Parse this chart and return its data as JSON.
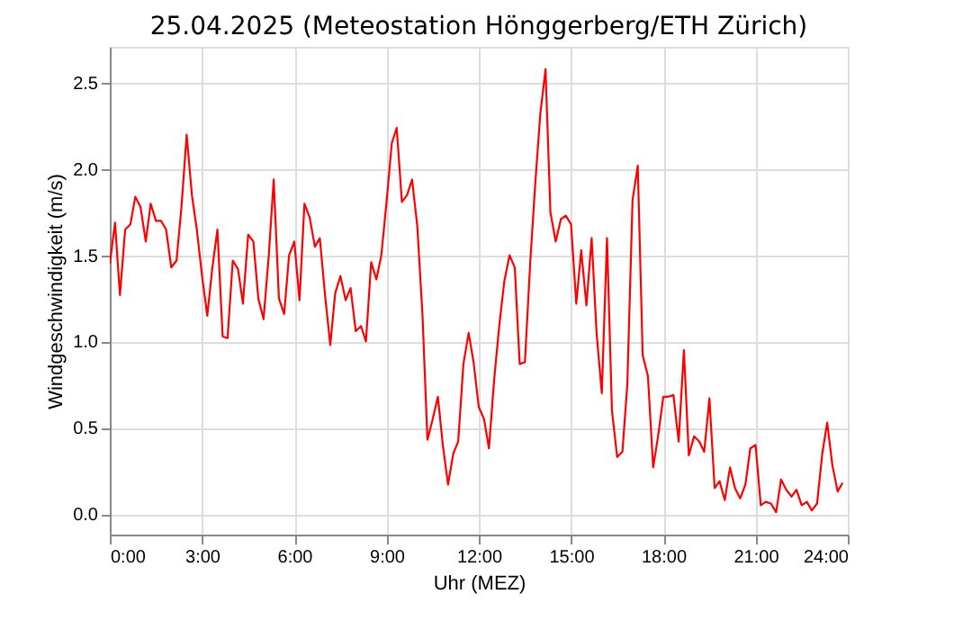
{
  "chart_data": {
    "type": "line",
    "title": "25.04.2025  (Meteostation Hönggerberg/ETH Zürich)",
    "xlabel": "Uhr (MEZ)",
    "ylabel": "Windgeschwindigkeit (m/s)",
    "x": [
      0,
      0.17,
      0.33,
      0.5,
      0.67,
      0.83,
      1.0,
      1.17,
      1.33,
      1.5,
      1.67,
      1.83,
      2.0,
      2.17,
      2.33,
      2.5,
      2.67,
      2.83,
      3.0,
      3.17,
      3.33,
      3.5,
      3.67,
      3.83,
      4.0,
      4.17,
      4.33,
      4.5,
      4.67,
      4.83,
      5.0,
      5.17,
      5.33,
      5.5,
      5.67,
      5.83,
      6.0,
      6.17,
      6.33,
      6.5,
      6.67,
      6.83,
      7.0,
      7.17,
      7.33,
      7.5,
      7.67,
      7.83,
      8.0,
      8.17,
      8.33,
      8.5,
      8.67,
      8.83,
      9.0,
      9.17,
      9.33,
      9.5,
      9.67,
      9.83,
      10.0,
      10.17,
      10.33,
      10.5,
      10.67,
      10.83,
      11.0,
      11.17,
      11.33,
      11.5,
      11.67,
      11.83,
      12.0,
      12.17,
      12.33,
      12.5,
      12.67,
      12.83,
      13.0,
      13.17,
      13.33,
      13.5,
      13.67,
      13.83,
      14.0,
      14.17,
      14.33,
      14.5,
      14.67,
      14.83,
      15.0,
      15.17,
      15.33,
      15.5,
      15.67,
      15.83,
      16.0,
      16.17,
      16.33,
      16.5,
      16.67,
      16.83,
      17.0,
      17.17,
      17.33,
      17.5,
      17.67,
      17.83,
      18.0,
      18.17,
      18.33,
      18.5,
      18.67,
      18.83,
      19.0,
      19.17,
      19.33,
      19.5,
      19.67,
      19.83,
      20.0,
      20.17,
      20.33,
      20.5,
      20.67,
      20.83,
      21.0,
      21.17,
      21.33,
      21.5,
      21.67,
      21.83,
      22.0,
      22.17,
      22.33,
      22.5,
      22.67,
      22.83,
      23.0,
      23.17,
      23.33,
      23.5,
      23.67,
      23.83
    ],
    "series": [
      {
        "color": "#ff0000",
        "values": [
          1.45,
          1.69,
          1.27,
          1.65,
          1.68,
          1.84,
          1.78,
          1.58,
          1.8,
          1.7,
          1.7,
          1.65,
          1.43,
          1.47,
          1.78,
          2.2,
          1.85,
          1.65,
          1.38,
          1.15,
          1.42,
          1.65,
          1.03,
          1.02,
          1.47,
          1.42,
          1.22,
          1.62,
          1.58,
          1.25,
          1.13,
          1.5,
          1.94,
          1.25,
          1.16,
          1.5,
          1.58,
          1.24,
          1.8,
          1.72,
          1.55,
          1.6,
          1.27,
          0.98,
          1.28,
          1.38,
          1.24,
          1.31,
          1.06,
          1.09,
          1.0,
          1.46,
          1.36,
          1.5,
          1.81,
          2.15,
          2.24,
          1.81,
          1.85,
          1.94,
          1.67,
          1.15,
          0.43,
          0.55,
          0.68,
          0.4,
          0.17,
          0.35,
          0.42,
          0.87,
          1.05,
          0.88,
          0.62,
          0.55,
          0.38,
          0.78,
          1.1,
          1.35,
          1.5,
          1.43,
          0.87,
          0.88,
          1.45,
          1.9,
          2.32,
          2.58,
          1.75,
          1.58,
          1.71,
          1.73,
          1.68,
          1.22,
          1.53,
          1.21,
          1.6,
          1.05,
          0.7,
          1.6,
          0.6,
          0.33,
          0.36,
          0.75,
          1.82,
          2.02,
          0.92,
          0.8,
          0.27,
          0.45,
          0.68,
          0.68,
          0.69,
          0.42,
          0.95,
          0.34,
          0.45,
          0.42,
          0.36,
          0.67,
          0.15,
          0.19,
          0.08,
          0.27,
          0.15,
          0.09,
          0.17,
          0.38,
          0.4,
          0.05,
          0.07,
          0.06,
          0.01,
          0.2,
          0.14,
          0.1,
          0.14,
          0.05,
          0.07,
          0.02,
          0.06,
          0.35,
          0.53,
          0.28,
          0.13,
          0.18
        ]
      }
    ],
    "xlim": [
      0,
      24
    ],
    "xticks": [
      {
        "value": 0,
        "label": "0:00"
      },
      {
        "value": 3,
        "label": "3:00"
      },
      {
        "value": 6,
        "label": "6:00"
      },
      {
        "value": 9,
        "label": "9:00"
      },
      {
        "value": 12,
        "label": "12:00"
      },
      {
        "value": 15,
        "label": "15:00"
      },
      {
        "value": 18,
        "label": "18:00"
      },
      {
        "value": 21,
        "label": "21:00"
      },
      {
        "value": 24,
        "label": "24:00"
      }
    ],
    "ylim": [
      -0.12,
      2.71
    ],
    "yticks": [
      {
        "value": 0,
        "label": "0.0"
      },
      {
        "value": 0.5,
        "label": "0.5"
      },
      {
        "value": 1,
        "label": "1.0"
      },
      {
        "value": 1.5,
        "label": "1.5"
      },
      {
        "value": 2,
        "label": "2.0"
      },
      {
        "value": 2.5,
        "label": "2.5"
      }
    ],
    "grid": true,
    "marker": "none",
    "line_style": "solid"
  }
}
